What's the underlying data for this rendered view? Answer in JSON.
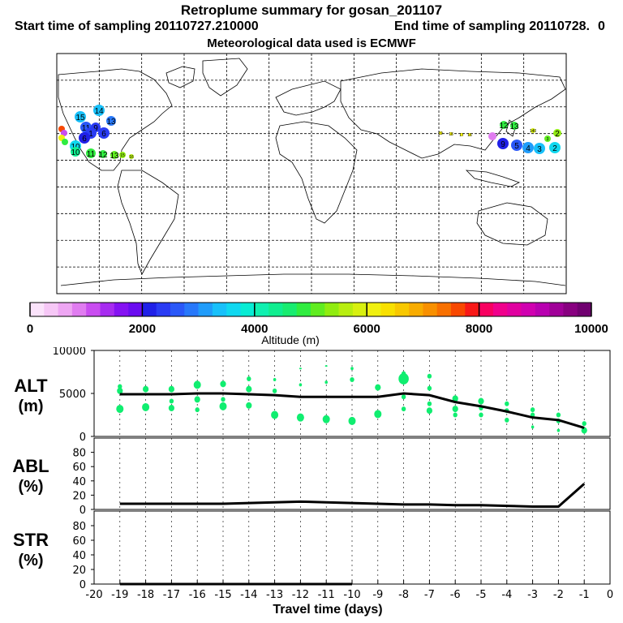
{
  "title": "Retroplume summary for gosan_201107",
  "start_label": "Start time of sampling 20110727.210000",
  "end_label": "End time of sampling 20110728.",
  "end_suffix": "0",
  "met_label": "Meteorological data used is ECMWF",
  "colorbar": {
    "ticks": [
      "0",
      "2000",
      "4000",
      "6000",
      "8000",
      "10000"
    ],
    "label": "Altitude (m)",
    "colors": [
      "#fbe3fb",
      "#f6c7f6",
      "#eea6f3",
      "#e07cf0",
      "#c94df0",
      "#a72cf0",
      "#8512f2",
      "#6a0cf0",
      "#2020e8",
      "#2a3cf4",
      "#2a58f8",
      "#2878fa",
      "#209cfa",
      "#18c0fa",
      "#10d8f0",
      "#08ecd4",
      "#10f0b0",
      "#10ee90",
      "#18ec70",
      "#30ec40",
      "#60ec20",
      "#90ec10",
      "#b8ee10",
      "#d8f010",
      "#f0f010",
      "#f8e000",
      "#f8c800",
      "#f8ac00",
      "#f89000",
      "#f87000",
      "#f84800",
      "#f81818",
      "#f80060",
      "#f0008c",
      "#e000a0",
      "#d000b0",
      "#b800b0",
      "#a00098",
      "#880080",
      "#700070"
    ]
  },
  "map_labels": [
    {
      "text": "14",
      "color": "#18c0fa"
    },
    {
      "text": "15",
      "color": "#18c0fa"
    },
    {
      "text": "11",
      "color": "#2a58f8"
    },
    {
      "text": "9",
      "color": "#2a3cf4"
    },
    {
      "text": "13",
      "color": "#2878fa"
    },
    {
      "text": "6",
      "color": "#2a3cf4"
    },
    {
      "text": "1",
      "color": "#2a3cf4"
    },
    {
      "text": "6",
      "color": "#2020e8"
    },
    {
      "text": "10",
      "color": "#10d8f0"
    },
    {
      "text": "10",
      "color": "#10ee90"
    },
    {
      "text": "11",
      "color": "#30ec40"
    },
    {
      "text": "12",
      "color": "#30ec40"
    },
    {
      "text": "13",
      "color": "#60ec20"
    },
    {
      "text": "15",
      "color": "#90ec10"
    },
    {
      "text": "16",
      "color": "#b8ee10"
    },
    {
      "text": "19",
      "color": "#f0f010"
    },
    {
      "text": "18",
      "color": "#f0f010"
    },
    {
      "text": "17",
      "color": "#f0f010"
    },
    {
      "text": "16",
      "color": "#f0f010"
    },
    {
      "text": "12",
      "color": "#30ec40"
    },
    {
      "text": "13",
      "color": "#30ec40"
    },
    {
      "text": "9",
      "color": "#2020e8"
    },
    {
      "text": "5",
      "color": "#2a58f8"
    },
    {
      "text": "4",
      "color": "#209cfa"
    },
    {
      "text": "3",
      "color": "#18c0fa"
    },
    {
      "text": "2",
      "color": "#10d8f0"
    },
    {
      "text": "140",
      "color": "#d8f010"
    },
    {
      "text": "3",
      "color": "#60ec20"
    },
    {
      "text": "2",
      "color": "#90ec10"
    }
  ],
  "chart_data": [
    {
      "type": "scatter+line",
      "name": "ALT",
      "ylabel_line1": "ALT",
      "ylabel_line2": "(m)",
      "ylim": [
        0,
        10000
      ],
      "yticks": [
        "10000",
        "5000",
        "0"
      ],
      "x": [
        -19,
        -18,
        -17,
        -16,
        -15,
        -14,
        -13,
        -12,
        -11,
        -10,
        -9,
        -8,
        -7,
        -6,
        -5,
        -4,
        -3,
        -2,
        -1
      ],
      "line": [
        4900,
        4900,
        4900,
        5000,
        5000,
        4900,
        4800,
        4600,
        4600,
        4600,
        4600,
        5000,
        4800,
        4000,
        3500,
        2900,
        2200,
        1900,
        1000
      ],
      "points": [
        {
          "x": -19,
          "y": 5800,
          "s": 3
        },
        {
          "x": -19,
          "y": 5300,
          "s": 4
        },
        {
          "x": -19,
          "y": 3200,
          "s": 5
        },
        {
          "x": -18,
          "y": 5500,
          "s": 4
        },
        {
          "x": -18,
          "y": 3400,
          "s": 5
        },
        {
          "x": -17,
          "y": 5500,
          "s": 4
        },
        {
          "x": -17,
          "y": 4100,
          "s": 3
        },
        {
          "x": -17,
          "y": 3300,
          "s": 4
        },
        {
          "x": -16,
          "y": 6000,
          "s": 5
        },
        {
          "x": -16,
          "y": 4300,
          "s": 4
        },
        {
          "x": -16,
          "y": 3100,
          "s": 3
        },
        {
          "x": -15,
          "y": 6100,
          "s": 4
        },
        {
          "x": -15,
          "y": 4300,
          "s": 3
        },
        {
          "x": -15,
          "y": 3500,
          "s": 5
        },
        {
          "x": -14,
          "y": 6700,
          "s": 3
        },
        {
          "x": -14,
          "y": 5500,
          "s": 4
        },
        {
          "x": -14,
          "y": 3600,
          "s": 4
        },
        {
          "x": -13,
          "y": 6600,
          "s": 2
        },
        {
          "x": -13,
          "y": 5300,
          "s": 3
        },
        {
          "x": -13,
          "y": 2500,
          "s": 5
        },
        {
          "x": -12,
          "y": 7900,
          "s": 1
        },
        {
          "x": -12,
          "y": 6000,
          "s": 2
        },
        {
          "x": -12,
          "y": 2200,
          "s": 5
        },
        {
          "x": -11,
          "y": 8200,
          "s": 1
        },
        {
          "x": -11,
          "y": 6300,
          "s": 2
        },
        {
          "x": -11,
          "y": 2000,
          "s": 5
        },
        {
          "x": -10,
          "y": 7900,
          "s": 2
        },
        {
          "x": -10,
          "y": 6600,
          "s": 3
        },
        {
          "x": -10,
          "y": 1800,
          "s": 5
        },
        {
          "x": -9,
          "y": 5700,
          "s": 4
        },
        {
          "x": -9,
          "y": 2600,
          "s": 5
        },
        {
          "x": -8,
          "y": 7300,
          "s": 3
        },
        {
          "x": -8,
          "y": 6700,
          "s": 7
        },
        {
          "x": -8,
          "y": 4600,
          "s": 3
        },
        {
          "x": -8,
          "y": 3200,
          "s": 3
        },
        {
          "x": -7,
          "y": 7000,
          "s": 3
        },
        {
          "x": -7,
          "y": 5600,
          "s": 3
        },
        {
          "x": -7,
          "y": 3800,
          "s": 3
        },
        {
          "x": -7,
          "y": 3000,
          "s": 4
        },
        {
          "x": -6,
          "y": 4400,
          "s": 4
        },
        {
          "x": -6,
          "y": 3200,
          "s": 4
        },
        {
          "x": -6,
          "y": 2500,
          "s": 3
        },
        {
          "x": -5,
          "y": 4100,
          "s": 4
        },
        {
          "x": -5,
          "y": 3300,
          "s": 3
        },
        {
          "x": -5,
          "y": 2500,
          "s": 3
        },
        {
          "x": -4,
          "y": 3800,
          "s": 3
        },
        {
          "x": -4,
          "y": 3000,
          "s": 3
        },
        {
          "x": -4,
          "y": 1900,
          "s": 3
        },
        {
          "x": -3,
          "y": 3100,
          "s": 3
        },
        {
          "x": -3,
          "y": 2500,
          "s": 3
        },
        {
          "x": -3,
          "y": 1100,
          "s": 2
        },
        {
          "x": -2,
          "y": 2500,
          "s": 3
        },
        {
          "x": -2,
          "y": 1800,
          "s": 3
        },
        {
          "x": -2,
          "y": 700,
          "s": 2
        },
        {
          "x": -1,
          "y": 1500,
          "s": 3
        },
        {
          "x": -1,
          "y": 700,
          "s": 4
        }
      ],
      "point_color": "#10ee70",
      "line_color": "#000000"
    },
    {
      "type": "line",
      "name": "ABL",
      "ylabel_line1": "ABL",
      "ylabel_line2": "(%)",
      "ylim": [
        0,
        100
      ],
      "yticks": [
        "80",
        "60",
        "40",
        "20",
        "0"
      ],
      "x": [
        -19,
        -18,
        -17,
        -16,
        -15,
        -14,
        -13,
        -12,
        -11,
        -10,
        -9,
        -8,
        -7,
        -6,
        -5,
        -4,
        -3,
        -2,
        -1
      ],
      "values": [
        8,
        8,
        8,
        8,
        8,
        9,
        10,
        11,
        10,
        9,
        8,
        7,
        7,
        6,
        6,
        5,
        4,
        4,
        36
      ]
    },
    {
      "type": "line",
      "name": "STR",
      "ylabel_line1": "STR",
      "ylabel_line2": "(%)",
      "ylim": [
        0,
        100
      ],
      "yticks": [
        "80",
        "60",
        "40",
        "20",
        "0"
      ],
      "x": [
        -19,
        -18,
        -17,
        -16,
        -15,
        -14,
        -13,
        -12,
        -11,
        -10
      ],
      "values": [
        0,
        0,
        0,
        0,
        0,
        0,
        0,
        0,
        0,
        0
      ]
    }
  ],
  "x_axis": {
    "ticks": [
      "-20",
      "-19",
      "-18",
      "-17",
      "-16",
      "-15",
      "-14",
      "-13",
      "-12",
      "-11",
      "-10",
      "-9",
      "-8",
      "-7",
      "-6",
      "-5",
      "-4",
      "-3",
      "-2",
      "-1",
      "0"
    ],
    "label": "Travel time (days)"
  }
}
